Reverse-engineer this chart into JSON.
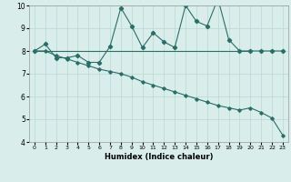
{
  "line1_x": [
    0,
    1,
    2,
    3,
    4,
    5,
    6,
    7,
    8,
    9,
    10,
    11,
    12,
    13,
    14,
    15,
    16,
    17,
    18,
    19,
    20,
    21,
    22,
    23
  ],
  "line1_y": [
    8.0,
    8.3,
    7.7,
    7.7,
    7.8,
    7.5,
    7.5,
    8.2,
    9.9,
    9.1,
    8.15,
    8.8,
    8.4,
    8.15,
    10.0,
    9.3,
    9.1,
    10.3,
    8.5,
    8.0,
    8.0,
    8.0,
    8.0,
    8.0
  ],
  "line2_x": [
    0,
    1,
    2,
    3,
    4,
    5,
    6,
    7,
    8,
    9,
    10,
    11,
    12,
    13,
    14,
    15,
    16,
    17,
    18,
    19,
    20
  ],
  "line2_y": [
    8.0,
    8.0,
    8.0,
    8.0,
    8.0,
    8.0,
    8.0,
    8.0,
    8.0,
    8.0,
    8.0,
    8.0,
    8.0,
    8.0,
    8.0,
    8.0,
    8.0,
    8.0,
    8.0,
    8.0,
    8.0
  ],
  "line3_x": [
    0,
    1,
    2,
    3,
    4,
    5,
    6,
    7,
    8,
    9,
    10,
    11,
    12,
    13,
    14,
    15,
    16,
    17,
    18,
    19,
    20,
    21,
    22,
    23
  ],
  "line3_y": [
    8.0,
    8.0,
    7.8,
    7.65,
    7.5,
    7.35,
    7.2,
    7.1,
    7.0,
    6.85,
    6.65,
    6.5,
    6.35,
    6.2,
    6.05,
    5.9,
    5.75,
    5.6,
    5.5,
    5.4,
    5.5,
    5.3,
    5.05,
    4.3
  ],
  "bg_color": "#d9eeeb",
  "grid_color": "#b8d8d4",
  "line_color": "#2a6e68",
  "xlabel": "Humidex (Indice chaleur)",
  "xlim": [
    -0.5,
    23.5
  ],
  "ylim": [
    4,
    10
  ],
  "yticks": [
    4,
    5,
    6,
    7,
    8,
    9,
    10
  ],
  "xtick_labels": [
    "0",
    "1",
    "2",
    "3",
    "4",
    "5",
    "6",
    "7",
    "8",
    "9",
    "10",
    "11",
    "12",
    "13",
    "14",
    "15",
    "16",
    "17",
    "18",
    "19",
    "20",
    "21",
    "22",
    "23"
  ]
}
